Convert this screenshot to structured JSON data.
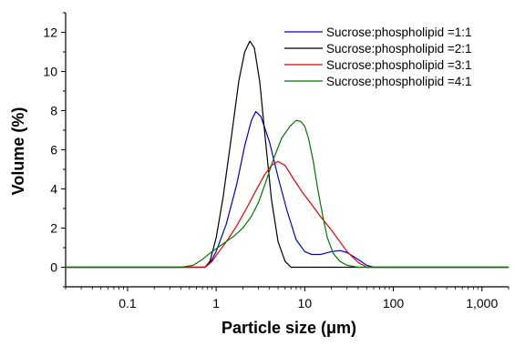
{
  "chart_data": {
    "type": "line",
    "title": "",
    "xlabel": "Particle size (μm)",
    "ylabel": "Volume (%)",
    "x_scale": "log",
    "xlim": [
      0.02,
      2000
    ],
    "ylim": [
      -1,
      13
    ],
    "x_ticks": [
      {
        "value": 0.1,
        "label": "0.1"
      },
      {
        "value": 1,
        "label": "1"
      },
      {
        "value": 10,
        "label": "10"
      },
      {
        "value": 100,
        "label": "100"
      },
      {
        "value": 1000,
        "label": "1,000"
      }
    ],
    "y_ticks": [
      {
        "value": 0,
        "label": "0"
      },
      {
        "value": 2,
        "label": "2"
      },
      {
        "value": 4,
        "label": "4"
      },
      {
        "value": 6,
        "label": "6"
      },
      {
        "value": 8,
        "label": "8"
      },
      {
        "value": 10,
        "label": "10"
      },
      {
        "value": 12,
        "label": "12"
      }
    ],
    "grid": false,
    "legend_position": "top-right",
    "series": [
      {
        "name": "Sucrose:phospholipid =1:1",
        "color": "#0000cc",
        "points": [
          [
            0.02,
            0
          ],
          [
            0.5,
            0
          ],
          [
            0.75,
            0
          ],
          [
            0.85,
            0.2
          ],
          [
            1.0,
            0.8
          ],
          [
            1.3,
            2.2
          ],
          [
            1.7,
            4.2
          ],
          [
            2.1,
            6.2
          ],
          [
            2.5,
            7.5
          ],
          [
            2.8,
            7.95
          ],
          [
            3.2,
            7.7
          ],
          [
            4.0,
            6.4
          ],
          [
            5.0,
            4.6
          ],
          [
            6.3,
            2.9
          ],
          [
            8.0,
            1.4
          ],
          [
            10,
            0.8
          ],
          [
            12,
            0.65
          ],
          [
            15,
            0.65
          ],
          [
            20,
            0.8
          ],
          [
            25,
            0.85
          ],
          [
            30,
            0.75
          ],
          [
            40,
            0.4
          ],
          [
            50,
            0.1
          ],
          [
            60,
            0
          ],
          [
            2000,
            0
          ]
        ]
      },
      {
        "name": "Sucrose:phospholipid =2:1",
        "color": "#000000",
        "points": [
          [
            0.02,
            0
          ],
          [
            0.5,
            0
          ],
          [
            0.75,
            0
          ],
          [
            0.85,
            0.3
          ],
          [
            1.0,
            1.5
          ],
          [
            1.2,
            3.6
          ],
          [
            1.5,
            6.8
          ],
          [
            1.8,
            9.5
          ],
          [
            2.1,
            11.0
          ],
          [
            2.4,
            11.55
          ],
          [
            2.7,
            11.2
          ],
          [
            3.1,
            9.5
          ],
          [
            3.6,
            6.5
          ],
          [
            4.2,
            3.5
          ],
          [
            5.0,
            1.3
          ],
          [
            6.0,
            0.3
          ],
          [
            7.0,
            0
          ],
          [
            2000,
            0
          ]
        ]
      },
      {
        "name": "Sucrose:phospholipid =3:1",
        "color": "#dd0000",
        "points": [
          [
            0.02,
            0
          ],
          [
            0.5,
            0
          ],
          [
            0.75,
            0
          ],
          [
            0.9,
            0.3
          ],
          [
            1.0,
            0.6
          ],
          [
            1.3,
            1.3
          ],
          [
            1.7,
            2.1
          ],
          [
            2.2,
            3.0
          ],
          [
            2.8,
            3.9
          ],
          [
            3.5,
            4.7
          ],
          [
            4.2,
            5.2
          ],
          [
            5.0,
            5.4
          ],
          [
            6.0,
            5.2
          ],
          [
            7.5,
            4.5
          ],
          [
            9.5,
            3.8
          ],
          [
            12,
            3.2
          ],
          [
            15,
            2.6
          ],
          [
            20,
            1.9
          ],
          [
            25,
            1.3
          ],
          [
            30,
            0.8
          ],
          [
            40,
            0.25
          ],
          [
            50,
            0
          ],
          [
            2000,
            0
          ]
        ]
      },
      {
        "name": "Sucrose:phospholipid =4:1",
        "color": "#007700",
        "points": [
          [
            0.02,
            0
          ],
          [
            0.4,
            0
          ],
          [
            0.55,
            0.1
          ],
          [
            0.7,
            0.4
          ],
          [
            0.9,
            0.8
          ],
          [
            1.2,
            1.2
          ],
          [
            1.6,
            1.6
          ],
          [
            2.0,
            2.0
          ],
          [
            2.5,
            2.6
          ],
          [
            3.0,
            3.3
          ],
          [
            3.6,
            4.3
          ],
          [
            4.5,
            5.6
          ],
          [
            5.5,
            6.6
          ],
          [
            6.8,
            7.2
          ],
          [
            8.0,
            7.5
          ],
          [
            9.0,
            7.45
          ],
          [
            10,
            7.2
          ],
          [
            11,
            6.6
          ],
          [
            12.5,
            5.4
          ],
          [
            14,
            4.0
          ],
          [
            16,
            2.6
          ],
          [
            18,
            1.5
          ],
          [
            21,
            0.7
          ],
          [
            25,
            0.3
          ],
          [
            30,
            0.1
          ],
          [
            40,
            0
          ],
          [
            2000,
            0
          ]
        ]
      }
    ]
  }
}
